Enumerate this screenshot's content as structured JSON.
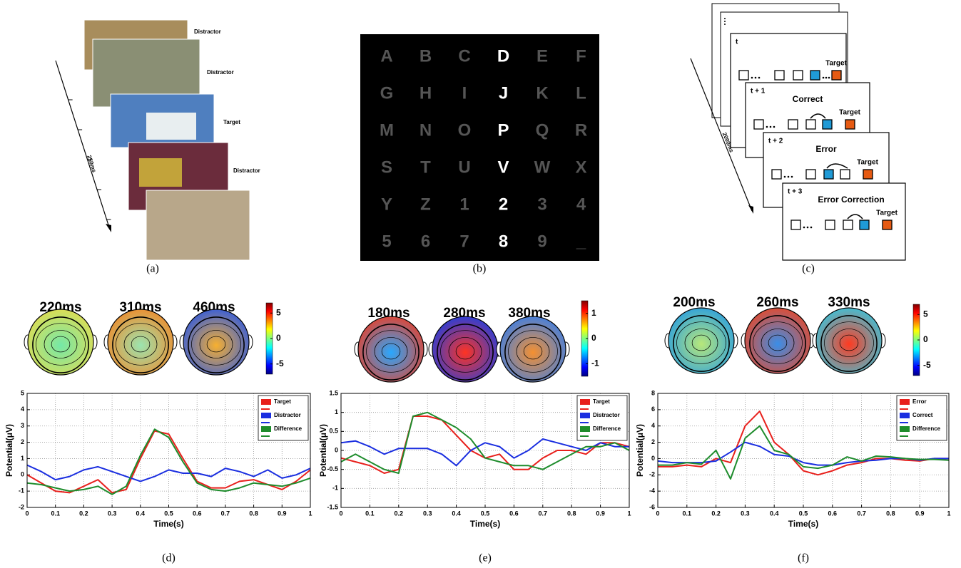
{
  "chart_data": [
    {
      "type": "line",
      "caption": "(d)",
      "xlabel": "Time(s)",
      "ylabel": "Potential(μV)",
      "xlim": [
        0,
        1
      ],
      "xticks": [
        0,
        0.1,
        0.2,
        0.3,
        0.4,
        0.5,
        0.6,
        0.7,
        0.8,
        0.9,
        1
      ],
      "ylim": [
        -2,
        5
      ],
      "yticks": [
        -2,
        -1,
        0,
        1,
        2,
        3,
        4,
        5
      ],
      "grid": true,
      "legend": "upper right",
      "x": [
        0,
        0.05,
        0.1,
        0.15,
        0.2,
        0.25,
        0.3,
        0.35,
        0.4,
        0.45,
        0.5,
        0.55,
        0.6,
        0.65,
        0.7,
        0.75,
        0.8,
        0.85,
        0.9,
        0.95,
        1
      ],
      "series": [
        {
          "name": "Target",
          "color": "#e8201c",
          "values": [
            0,
            -0.5,
            -1,
            -1.1,
            -0.7,
            -0.3,
            -1.1,
            -0.9,
            1,
            2.7,
            2.5,
            1,
            -0.4,
            -0.8,
            -0.8,
            -0.4,
            -0.3,
            -0.6,
            -0.9,
            -0.4,
            0.3
          ]
        },
        {
          "name": "Distractor",
          "color": "#1a2ee0",
          "values": [
            0.6,
            0.2,
            -0.3,
            -0.1,
            0.3,
            0.5,
            0.2,
            -0.1,
            -0.4,
            -0.1,
            0.3,
            0.1,
            0.1,
            -0.1,
            0.4,
            0.2,
            -0.1,
            0.3,
            -0.2,
            0,
            0.4
          ]
        },
        {
          "name": "Difference",
          "color": "#1e8c2c",
          "values": [
            -0.5,
            -0.6,
            -0.8,
            -1,
            -0.9,
            -0.7,
            -1.2,
            -0.7,
            1.2,
            2.8,
            2.3,
            0.8,
            -0.5,
            -0.9,
            -1,
            -0.8,
            -0.5,
            -0.6,
            -0.7,
            -0.5,
            -0.2
          ]
        }
      ]
    },
    {
      "type": "line",
      "caption": "(e)",
      "xlabel": "Time(s)",
      "ylabel": "Potential(μV)",
      "xlim": [
        0,
        1
      ],
      "xticks": [
        0,
        0.1,
        0.2,
        0.3,
        0.4,
        0.5,
        0.6,
        0.7,
        0.8,
        0.9,
        1
      ],
      "ylim": [
        -1.5,
        1.5
      ],
      "yticks": [
        -1.5,
        -1,
        -0.5,
        0,
        0.5,
        1,
        1.5
      ],
      "grid": true,
      "legend": "upper right",
      "x": [
        0,
        0.05,
        0.1,
        0.15,
        0.2,
        0.25,
        0.3,
        0.35,
        0.4,
        0.45,
        0.5,
        0.55,
        0.6,
        0.65,
        0.7,
        0.75,
        0.8,
        0.85,
        0.9,
        0.95,
        1
      ],
      "series": [
        {
          "name": "Target",
          "color": "#e8201c",
          "values": [
            -0.2,
            -0.3,
            -0.4,
            -0.6,
            -0.5,
            0.9,
            0.9,
            0.8,
            0.4,
            0,
            -0.2,
            -0.1,
            -0.5,
            -0.5,
            -0.2,
            0,
            0,
            -0.1,
            0.2,
            0.2,
            0.1
          ]
        },
        {
          "name": "Distractor",
          "color": "#1a2ee0",
          "values": [
            0.2,
            0.25,
            0.1,
            -0.1,
            0.05,
            0.05,
            0.05,
            -0.1,
            -0.4,
            0,
            0.2,
            0.1,
            -0.2,
            0,
            0.3,
            0.2,
            0.1,
            0,
            0.2,
            0.1,
            0.1
          ]
        },
        {
          "name": "Difference",
          "color": "#1e8c2c",
          "values": [
            -0.3,
            -0.1,
            -0.3,
            -0.5,
            -0.6,
            0.9,
            1,
            0.8,
            0.6,
            0.3,
            -0.2,
            -0.3,
            -0.4,
            -0.4,
            -0.5,
            -0.3,
            -0.1,
            0.1,
            0.1,
            0.2,
            0
          ]
        }
      ]
    },
    {
      "type": "line",
      "caption": "(f)",
      "xlabel": "Time(s)",
      "ylabel": "Potential(μV)",
      "xlim": [
        0,
        1
      ],
      "xticks": [
        0,
        0.1,
        0.2,
        0.3,
        0.4,
        0.5,
        0.6,
        0.7,
        0.8,
        0.9,
        1
      ],
      "ylim": [
        -6,
        8
      ],
      "yticks": [
        -6,
        -4,
        -2,
        0,
        2,
        4,
        6,
        8
      ],
      "grid": true,
      "legend": "upper right",
      "x": [
        0,
        0.05,
        0.1,
        0.15,
        0.2,
        0.25,
        0.3,
        0.35,
        0.4,
        0.45,
        0.5,
        0.55,
        0.6,
        0.65,
        0.7,
        0.75,
        0.8,
        0.85,
        0.9,
        0.95,
        1
      ],
      "series": [
        {
          "name": "Error",
          "color": "#e8201c",
          "values": [
            -1,
            -1,
            -0.8,
            -1,
            0,
            -0.5,
            4,
            5.8,
            2,
            0.5,
            -1.5,
            -2,
            -1.5,
            -0.8,
            -0.5,
            0,
            0,
            -0.2,
            -0.3,
            0,
            0
          ]
        },
        {
          "name": "Correct",
          "color": "#1a2ee0",
          "values": [
            -0.3,
            -0.5,
            -0.5,
            -0.5,
            -0.3,
            0.8,
            2,
            1.5,
            0.5,
            0.3,
            -0.5,
            -0.8,
            -0.8,
            -0.5,
            -0.3,
            -0.2,
            0,
            0,
            -0.2,
            0,
            0
          ]
        },
        {
          "name": "Difference",
          "color": "#1e8c2c",
          "values": [
            -0.8,
            -0.8,
            -0.5,
            -0.7,
            1,
            -2.5,
            2.5,
            4,
            1,
            0.5,
            -1,
            -1.2,
            -0.8,
            0.2,
            -0.3,
            0.3,
            0.2,
            0,
            -0.1,
            -0.1,
            -0.2
          ]
        }
      ]
    }
  ],
  "topomaps": [
    {
      "labels": [
        "220ms",
        "310ms",
        "460ms"
      ],
      "clim": [
        -7,
        7
      ],
      "cticks": [
        5,
        0,
        -5
      ]
    },
    {
      "labels": [
        "180ms",
        "280ms",
        "380ms"
      ],
      "clim": [
        -1.5,
        1.5
      ],
      "cticks": [
        1,
        0,
        -1
      ]
    },
    {
      "labels": [
        "200ms",
        "260ms",
        "330ms"
      ],
      "clim": [
        -7,
        7
      ],
      "cticks": [
        5,
        0,
        -5
      ]
    }
  ],
  "panel_a": {
    "caption": "(a)",
    "duration": "250ms",
    "labels": [
      "Distractor",
      "Distractor",
      "Target",
      "Distractor"
    ]
  },
  "panel_b": {
    "caption": "(b)",
    "highlighted_column": 3,
    "rows": [
      [
        "A",
        "B",
        "C",
        "D",
        "E",
        "F"
      ],
      [
        "G",
        "H",
        "I",
        "J",
        "K",
        "L"
      ],
      [
        "M",
        "N",
        "O",
        "P",
        "Q",
        "R"
      ],
      [
        "S",
        "T",
        "U",
        "V",
        "W",
        "X"
      ],
      [
        "Y",
        "Z",
        "1",
        "2",
        "3",
        "4"
      ],
      [
        "5",
        "6",
        "7",
        "8",
        "9",
        "_"
      ]
    ]
  },
  "panel_c": {
    "caption": "(c)",
    "duration": "2000ms",
    "frames": [
      {
        "step": "t",
        "target": "Target"
      },
      {
        "step": "t + 1",
        "title": "Correct",
        "target": "Target"
      },
      {
        "step": "t + 2",
        "title": "Error",
        "target": "Target"
      },
      {
        "step": "t + 3",
        "title": "Error Correction",
        "target": "Target"
      }
    ]
  }
}
